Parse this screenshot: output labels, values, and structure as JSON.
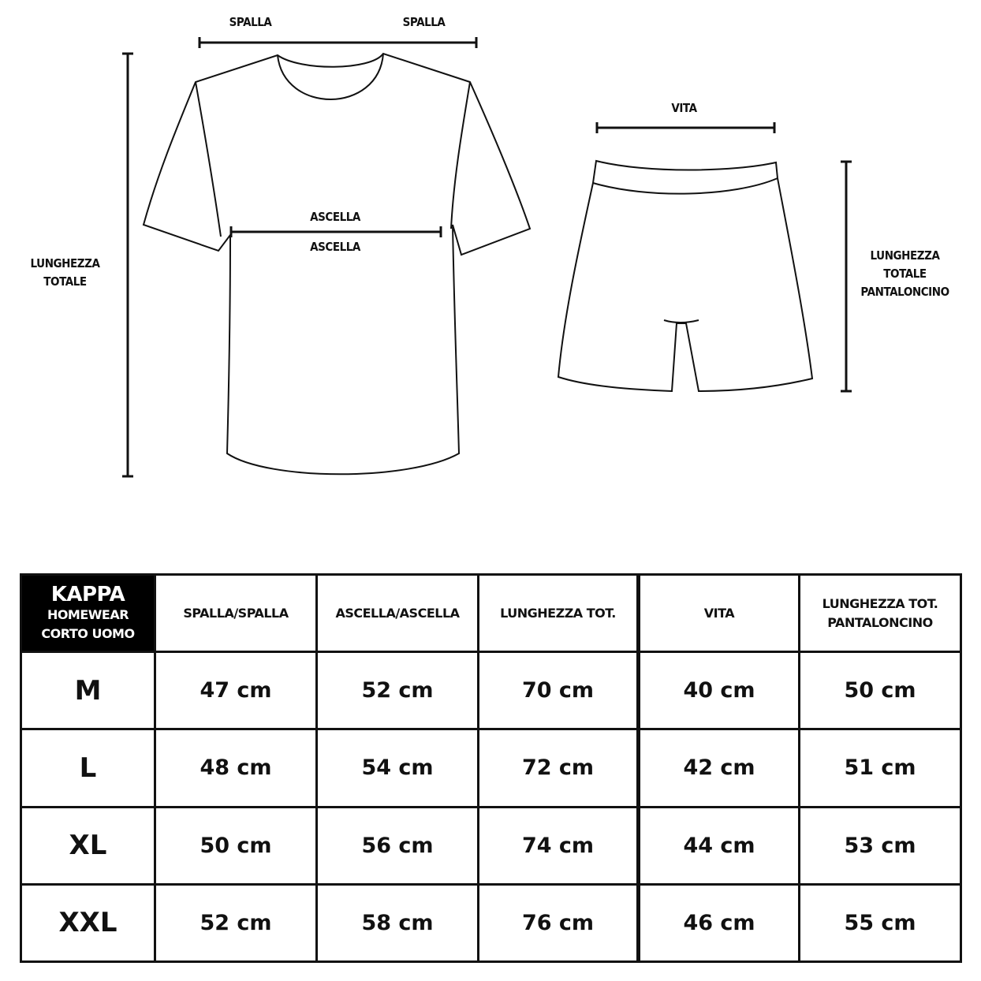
{
  "diagram": {
    "shirt_labels": {
      "shoulder_left": "SPALLA",
      "shoulder_right": "SPALLA",
      "armpit_top": "ASCELLA",
      "armpit_bottom": "ASCELLA",
      "total_length": [
        "LUNGHEZZA",
        "TOTALE"
      ]
    },
    "shorts_labels": {
      "waist": "VITA",
      "total_length": [
        "LUNGHEZZA",
        "TOTALE",
        "PANTALONCINO"
      ]
    }
  },
  "table": {
    "brand": [
      "KAPPA",
      "HOMEWEAR",
      "CORTO UOMO"
    ],
    "headers": [
      "SPALLA/SPALLA",
      "ASCELLA/ASCELLA",
      "LUNGHEZZA TOT.",
      "VITA",
      [
        "LUNGHEZZA TOT.",
        "PANTALONCINO"
      ]
    ],
    "rows": [
      {
        "size": "M",
        "values": [
          "47 cm",
          "52 cm",
          "70 cm",
          "40 cm",
          "50 cm"
        ]
      },
      {
        "size": "L",
        "values": [
          "48 cm",
          "54 cm",
          "72 cm",
          "42 cm",
          "51 cm"
        ]
      },
      {
        "size": "XL",
        "values": [
          "50 cm",
          "56 cm",
          "74 cm",
          "44 cm",
          "53 cm"
        ]
      },
      {
        "size": "XXL",
        "values": [
          "52 cm",
          "58 cm",
          "76 cm",
          "46 cm",
          "55 cm"
        ]
      }
    ]
  }
}
